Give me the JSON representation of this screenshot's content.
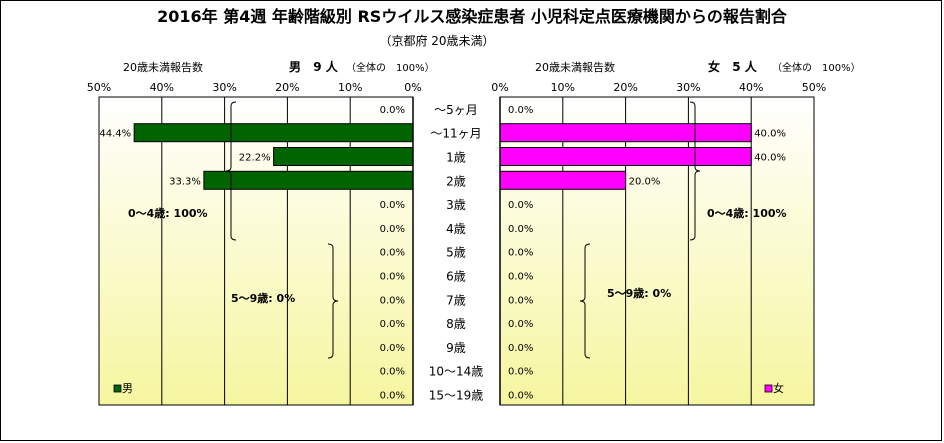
{
  "chart_data": {
    "type": "bar",
    "title": "2016年 第4週 年齢階級別 RSウイルス感染症患者 小児科定点医療機関からの報告割合",
    "subtitle": "（京都府 20歳未満）",
    "categories": [
      "～5ヶ月",
      "～11ヶ月",
      "1歳",
      "2歳",
      "3歳",
      "4歳",
      "5歳",
      "6歳",
      "7歳",
      "8歳",
      "9歳",
      "10～14歳",
      "15～19歳"
    ],
    "ticks": [
      "50%",
      "40%",
      "30%",
      "20%",
      "10%",
      "0%"
    ],
    "ticks_right": [
      "0%",
      "10%",
      "20%",
      "30%",
      "40%",
      "50%"
    ],
    "xlim": [
      0,
      50
    ],
    "grid": true,
    "panels": [
      {
        "side": "left",
        "axis_caption": "20歳未満報告数",
        "sex": "男",
        "count": "9",
        "unit": "人",
        "share_note": "（全体の　100%）",
        "legend": "男",
        "color": "#006400",
        "values": [
          0.0,
          44.4,
          22.2,
          33.3,
          0.0,
          0.0,
          0.0,
          0.0,
          0.0,
          0.0,
          0.0,
          0.0,
          0.0
        ],
        "labels": [
          "0.0%",
          "44.4%",
          "22.2%",
          "33.3%",
          "0.0%",
          "0.0%",
          "0.0%",
          "0.0%",
          "0.0%",
          "0.0%",
          "0.0%",
          "0.0%",
          "0.0%"
        ],
        "group_labels": [
          "0～4歳: 100%",
          "5～9歳: 0%"
        ]
      },
      {
        "side": "right",
        "axis_caption": "20歳未満報告数",
        "sex": "女",
        "count": "5",
        "unit": "人",
        "share_note": "（全体の　100%）",
        "legend": "女",
        "color": "#ff00ff",
        "values": [
          0.0,
          40.0,
          40.0,
          20.0,
          0.0,
          0.0,
          0.0,
          0.0,
          0.0,
          0.0,
          0.0,
          0.0,
          0.0
        ],
        "labels": [
          "0.0%",
          "40.0%",
          "40.0%",
          "20.0%",
          "0.0%",
          "0.0%",
          "0.0%",
          "0.0%",
          "0.0%",
          "0.0%",
          "0.0%",
          "0.0%",
          "0.0%"
        ],
        "group_labels": [
          "0～4歳: 100%",
          "5～9歳: 0%"
        ]
      }
    ]
  }
}
